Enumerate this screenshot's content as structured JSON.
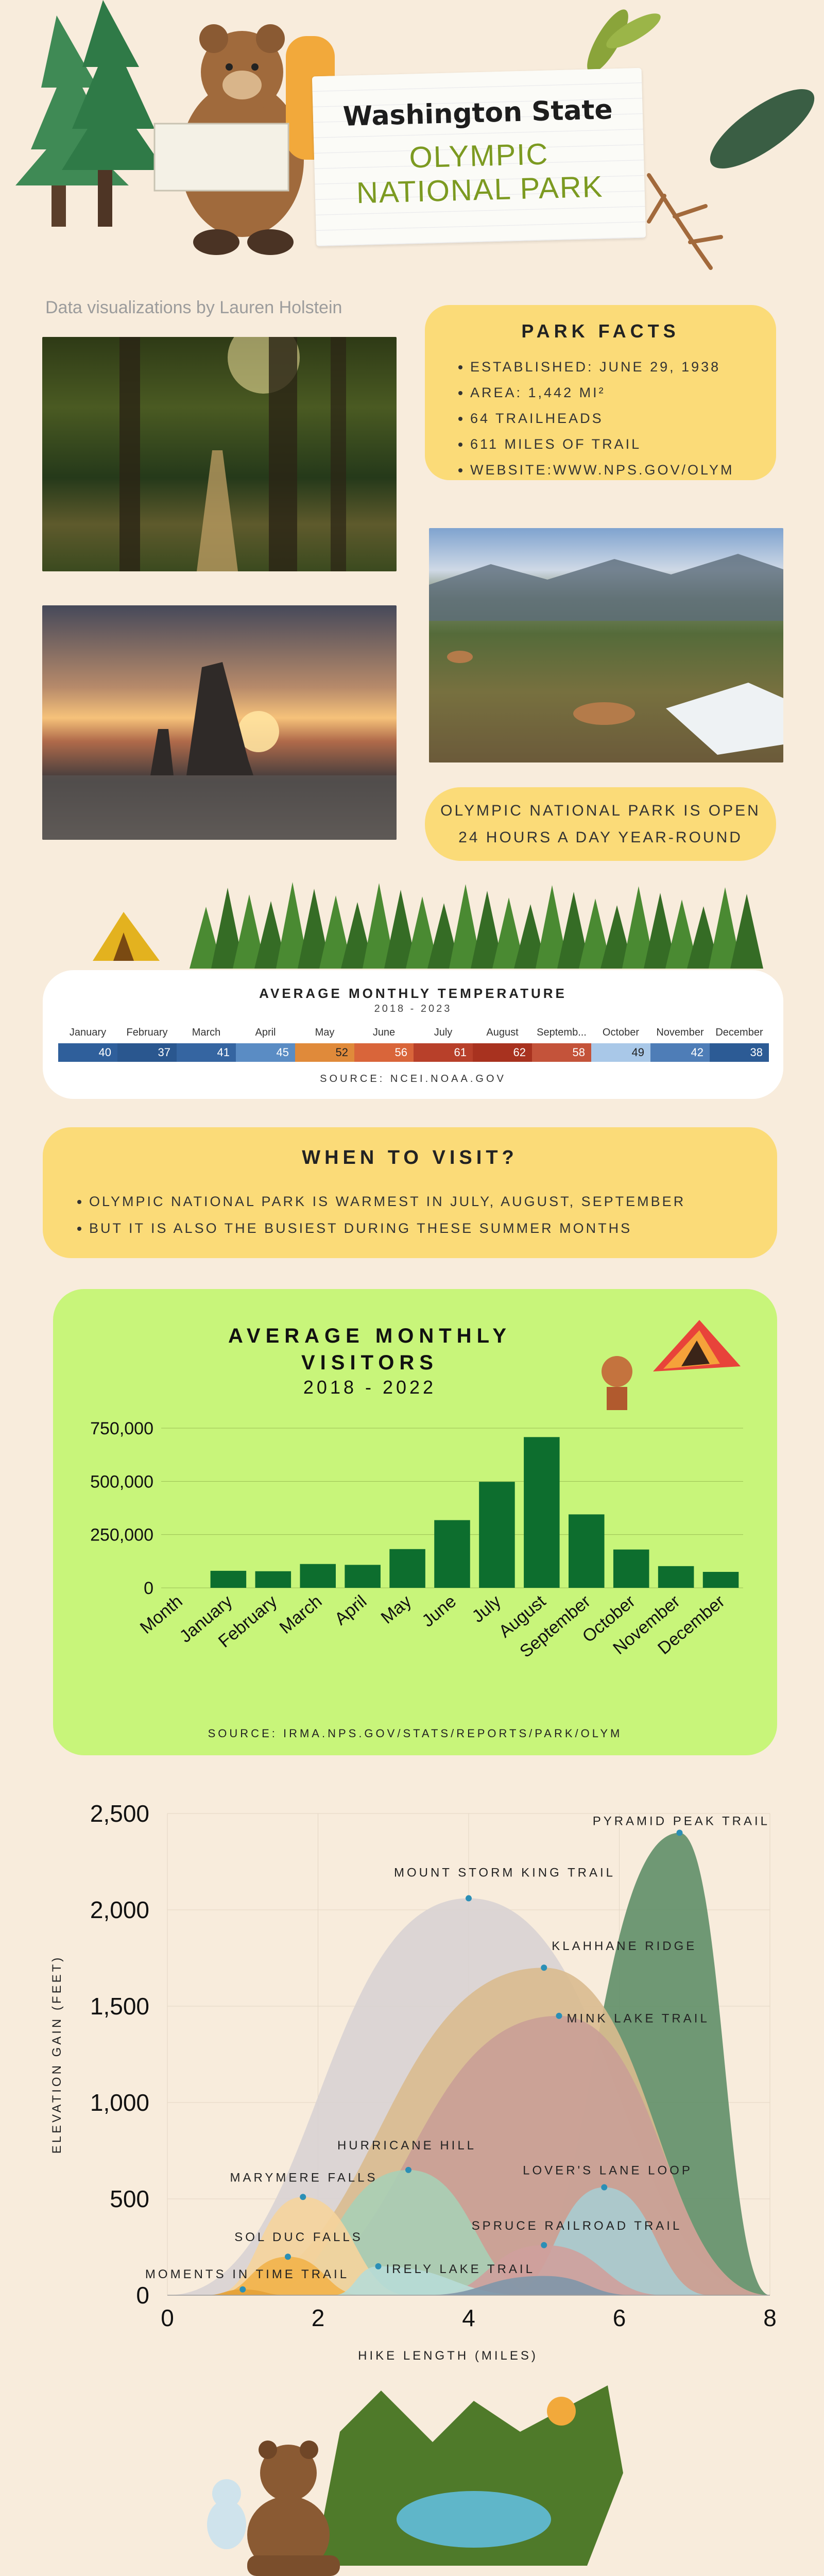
{
  "header": {
    "state": "Washington State",
    "park_line1": "OLYMPIC",
    "park_line2": "NATIONAL PARK",
    "credit": "Data visualizations by Lauren Holstein"
  },
  "facts": {
    "title": "PARK FACTS",
    "items": [
      "ESTABLISHED: JUNE 29, 1938",
      "AREA: 1,442 MI²",
      "64 TRAILHEADS",
      "611 MILES OF TRAIL",
      "WEBSITE:WWW.NPS.GOV/OLYM"
    ]
  },
  "open": {
    "line1": "OLYMPIC NATIONAL PARK IS OPEN",
    "line2": "24 HOURS A DAY YEAR-ROUND"
  },
  "when": {
    "title": "WHEN TO VISIT?",
    "items": [
      "OLYMPIC NATIONAL PARK IS WARMEST IN JULY, AUGUST, SEPTEMBER",
      "BUT IT IS ALSO THE BUSIEST DURING THESE SUMMER MONTHS"
    ]
  },
  "colors": {
    "bg": "#f8ecdc",
    "yellow": "#fbdb78",
    "green_panel": "#c8f57a",
    "bar_green": "#0d6e2e",
    "accent_green": "#7c9a21"
  },
  "chart_data": [
    {
      "type": "heatmap",
      "title": "AVERAGE MONTHLY TEMPERATURE",
      "subtitle": "2018 - 2023",
      "source": "SOURCE: NCEI.NOAA.GOV",
      "categories": [
        "January",
        "February",
        "March",
        "April",
        "May",
        "June",
        "July",
        "August",
        "Septemb...",
        "October",
        "November",
        "December"
      ],
      "values": [
        40,
        37,
        41,
        45,
        52,
        56,
        61,
        62,
        58,
        49,
        42,
        38
      ],
      "colors": [
        "#2f5f9b",
        "#2a578f",
        "#3565a1",
        "#5a8cc4",
        "#e08a3a",
        "#d9653a",
        "#b8402a",
        "#a8321f",
        "#c4533a",
        "#a9c8e8",
        "#4e7db7",
        "#2c5b95"
      ]
    },
    {
      "type": "bar",
      "title_line1": "AVERAGE MONTHLY",
      "title_line2": "VISITORS",
      "subtitle": "2018 - 2022",
      "xlabel": "Month",
      "categories": [
        "January",
        "February",
        "March",
        "April",
        "May",
        "June",
        "July",
        "August",
        "September",
        "October",
        "November",
        "December"
      ],
      "values": [
        80000,
        78000,
        112000,
        108000,
        182000,
        318000,
        498000,
        708000,
        345000,
        180000,
        102000,
        75000
      ],
      "yticks": [
        "0",
        "250,000",
        "500,000",
        "750,000"
      ],
      "ylim": [
        0,
        750000
      ],
      "source": "SOURCE: IRMA.NPS.GOV/STATS/REPORTS/PARK/OLYM"
    },
    {
      "type": "area",
      "ylabel": "ELEVATION GAIN (FEET)",
      "xlabel": "HIKE LENGTH (MILES)",
      "xlim": [
        0,
        8
      ],
      "ylim": [
        0,
        2500
      ],
      "xticks": [
        "0",
        "2",
        "4",
        "6",
        "8"
      ],
      "yticks": [
        "0",
        "500",
        "1,000",
        "1,500",
        "2,000",
        "2,500"
      ],
      "series": [
        {
          "name": "PYRAMID PEAK TRAIL",
          "x": 6.8,
          "y": 2400,
          "start": 4.5,
          "end": 8,
          "color": "#5f8f68"
        },
        {
          "name": "MOUNT STORM KING TRAIL",
          "x": 4.0,
          "y": 2060,
          "start": 0,
          "end": 8,
          "color": "#d8d3d3"
        },
        {
          "name": "KLAHHANE RIDGE",
          "x": 5.0,
          "y": 1700,
          "start": 0.6,
          "end": 8,
          "color": "#d9bb8f"
        },
        {
          "name": "MINK LAKE TRAIL",
          "x": 5.2,
          "y": 1450,
          "start": 1.2,
          "end": 8,
          "color": "#c99e96"
        },
        {
          "name": "HURRICANE HILL",
          "x": 3.2,
          "y": 650,
          "start": 1.2,
          "end": 5.0,
          "color": "#a8cfb5"
        },
        {
          "name": "MARYMERE FALLS",
          "x": 1.8,
          "y": 510,
          "start": 0.6,
          "end": 3.2,
          "color": "#f5d49c"
        },
        {
          "name": "LOVER'S LANE LOOP",
          "x": 5.8,
          "y": 560,
          "start": 4.5,
          "end": 7.2,
          "color": "#a9ccd0"
        },
        {
          "name": "SOL DUC FALLS",
          "x": 1.6,
          "y": 200,
          "start": 0.6,
          "end": 2.6,
          "color": "#f2b24a"
        },
        {
          "name": "SPRUCE RAILROAD TRAIL",
          "x": 5.0,
          "y": 260,
          "start": 3.5,
          "end": 6.6,
          "color": "#cfa09c"
        },
        {
          "name": "MOMENTS IN TIME TRAIL",
          "x": 1.0,
          "y": 30,
          "start": 0.5,
          "end": 1.6,
          "color": "#e4a137"
        },
        {
          "name": "IRELY LAKE TRAIL",
          "x": 2.8,
          "y": 150,
          "start": 2.2,
          "end": 4.8,
          "color": "#b7dcd6"
        },
        {
          "name": "",
          "x": 5.0,
          "y": 100,
          "start": 3.4,
          "end": 6.2,
          "color": "#7f96a8"
        }
      ]
    }
  ]
}
